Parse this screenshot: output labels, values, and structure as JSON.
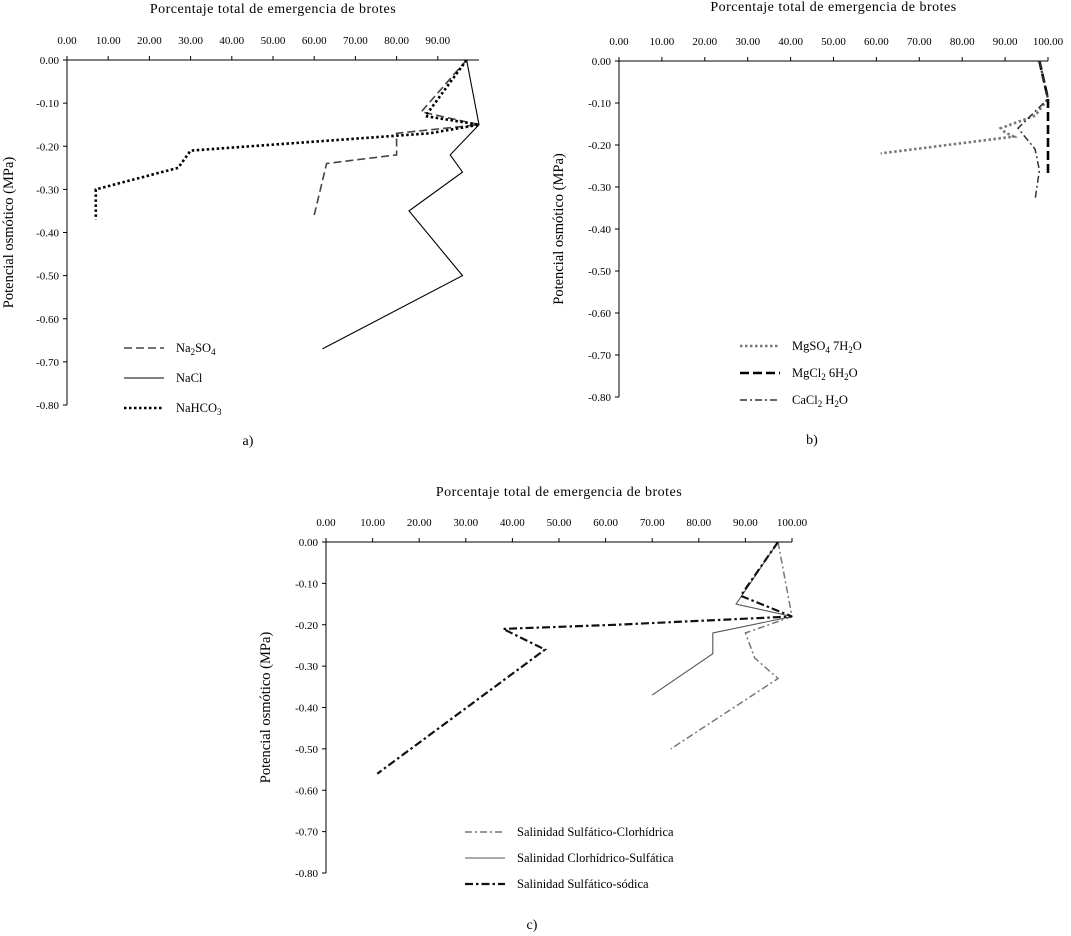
{
  "chart_data": [
    {
      "id": "a",
      "type": "line",
      "panel_label": "a)",
      "title": "Porcentaje total de emergencia de brotes",
      "ylabel": "Potencial osmótico (MPa)",
      "xlim": [
        0,
        100
      ],
      "ylim": [
        -0.8,
        0.0
      ],
      "x_ticks": [
        "0.00",
        "10.00",
        "20.00",
        "30.00",
        "40.00",
        "50.00",
        "60.00",
        "70.00",
        "80.00",
        "90.00"
      ],
      "y_ticks": [
        "0.00",
        "-0.10",
        "-0.20",
        "-0.30",
        "-0.40",
        "-0.50",
        "-0.60",
        "-0.70",
        "-0.80"
      ],
      "legend_position": "bottom-left",
      "series": [
        {
          "name": "Na2SO4",
          "legend_main": "Na",
          "legend_sub1": "2",
          "legend_mid": "SO",
          "legend_sub2": "4",
          "legend_tail": "",
          "style": "dash",
          "color": "#444444",
          "x": [
            97,
            86,
            100,
            80,
            80,
            63,
            60
          ],
          "y": [
            0.0,
            -0.12,
            -0.15,
            -0.17,
            -0.22,
            -0.24,
            -0.36
          ]
        },
        {
          "name": "NaCl",
          "legend_main": "NaCl",
          "legend_sub1": "",
          "legend_mid": "",
          "legend_sub2": "",
          "legend_tail": "",
          "style": "solid",
          "color": "#000000",
          "x": [
            97,
            100,
            93,
            96,
            83,
            96,
            62
          ],
          "y": [
            0.0,
            -0.15,
            -0.22,
            -0.26,
            -0.35,
            -0.5,
            -0.67
          ]
        },
        {
          "name": "NaHCO3",
          "legend_main": "NaHCO",
          "legend_sub1": "3",
          "legend_mid": "",
          "legend_sub2": "",
          "legend_tail": "",
          "style": "dot",
          "color": "#000000",
          "x": [
            97,
            87,
            100,
            88,
            30,
            27,
            7,
            7
          ],
          "y": [
            0.0,
            -0.13,
            -0.15,
            -0.17,
            -0.21,
            -0.25,
            -0.3,
            -0.37
          ]
        }
      ]
    },
    {
      "id": "b",
      "type": "line",
      "panel_label": "b)",
      "title": "Porcentaje total de emergencia de brotes",
      "ylabel": "Potencial osmótico (MPa)",
      "xlim": [
        0,
        100
      ],
      "ylim": [
        -0.8,
        0.0
      ],
      "x_ticks": [
        "0.00",
        "10.00",
        "20.00",
        "30.00",
        "40.00",
        "50.00",
        "60.00",
        "70.00",
        "80.00",
        "90.00",
        "100.00"
      ],
      "y_ticks": [
        "0.00",
        "-0.10",
        "-0.20",
        "-0.30",
        "-0.40",
        "-0.50",
        "-0.60",
        "-0.70",
        "-0.80"
      ],
      "legend_position": "bottom-right",
      "series": [
        {
          "name": "MgSO4 7H2O",
          "legend_main": "MgSO",
          "legend_sub1": "4",
          "legend_mid": " 7H",
          "legend_sub2": "2",
          "legend_tail": "O",
          "style": "dot",
          "color": "#777777",
          "x": [
            98,
            100,
            97,
            89,
            90,
            92,
            61
          ],
          "y": [
            0.0,
            -0.09,
            -0.13,
            -0.16,
            -0.17,
            -0.18,
            -0.22
          ]
        },
        {
          "name": "MgCl2 6H2O",
          "legend_main": "MgCl",
          "legend_sub1": "2",
          "legend_mid": " 6H",
          "legend_sub2": "2",
          "legend_tail": "O",
          "style": "dashheavy",
          "color": "#000000",
          "x": [
            98,
            100,
            100,
            100
          ],
          "y": [
            0.0,
            -0.09,
            -0.2,
            -0.27
          ]
        },
        {
          "name": "CaCl2 H2O",
          "legend_main": "CaCl",
          "legend_sub1": "2",
          "legend_mid": " H",
          "legend_sub2": "2",
          "legend_tail": "O",
          "style": "dashdot",
          "color": "#333333",
          "x": [
            98,
            100,
            93,
            97,
            98,
            97
          ],
          "y": [
            0.0,
            -0.09,
            -0.16,
            -0.21,
            -0.26,
            -0.33
          ]
        }
      ]
    },
    {
      "id": "c",
      "type": "line",
      "panel_label": "c)",
      "title": "Porcentaje total de emergencia de brotes",
      "ylabel": "Potencial osmótico (MPa)",
      "xlim": [
        0,
        100
      ],
      "ylim": [
        -0.8,
        0.0
      ],
      "x_ticks": [
        "0.00",
        "10.00",
        "20.00",
        "30.00",
        "40.00",
        "50.00",
        "60.00",
        "70.00",
        "80.00",
        "90.00",
        "100.00"
      ],
      "y_ticks": [
        "0.00",
        "-0.10",
        "-0.20",
        "-0.30",
        "-0.40",
        "-0.50",
        "-0.60",
        "-0.70",
        "-0.80"
      ],
      "legend_position": "bottom-right",
      "series": [
        {
          "name": "Salinidad Sulfático-Clorhídrica",
          "legend_main": "Salinidad Sulfático-Clorhídrica",
          "legend_sub1": "",
          "legend_mid": "",
          "legend_sub2": "",
          "legend_tail": "",
          "style": "dashdot",
          "color": "#777777",
          "x": [
            97,
            100,
            90,
            92,
            97,
            74
          ],
          "y": [
            0.0,
            -0.18,
            -0.22,
            -0.28,
            -0.33,
            -0.5
          ]
        },
        {
          "name": "Salinidad Clorhídrico-Sulfática",
          "legend_main": "Salinidad Clorhídrico-Sulfática",
          "legend_sub1": "",
          "legend_mid": "",
          "legend_sub2": "",
          "legend_tail": "",
          "style": "solid",
          "color": "#555555",
          "x": [
            97,
            88,
            100,
            83,
            83,
            70
          ],
          "y": [
            0.0,
            -0.15,
            -0.18,
            -0.22,
            -0.27,
            -0.37
          ]
        },
        {
          "name": "Salinidad Sulfático-sódica",
          "legend_main": "Salinidad Sulfático-sódica",
          "legend_sub1": "",
          "legend_mid": "",
          "legend_sub2": "",
          "legend_tail": "",
          "style": "dashdotheavy",
          "color": "#111111",
          "x": [
            97,
            89,
            100,
            62,
            38,
            47,
            11
          ],
          "y": [
            0.0,
            -0.13,
            -0.18,
            -0.2,
            -0.21,
            -0.26,
            -0.56
          ]
        }
      ]
    }
  ]
}
